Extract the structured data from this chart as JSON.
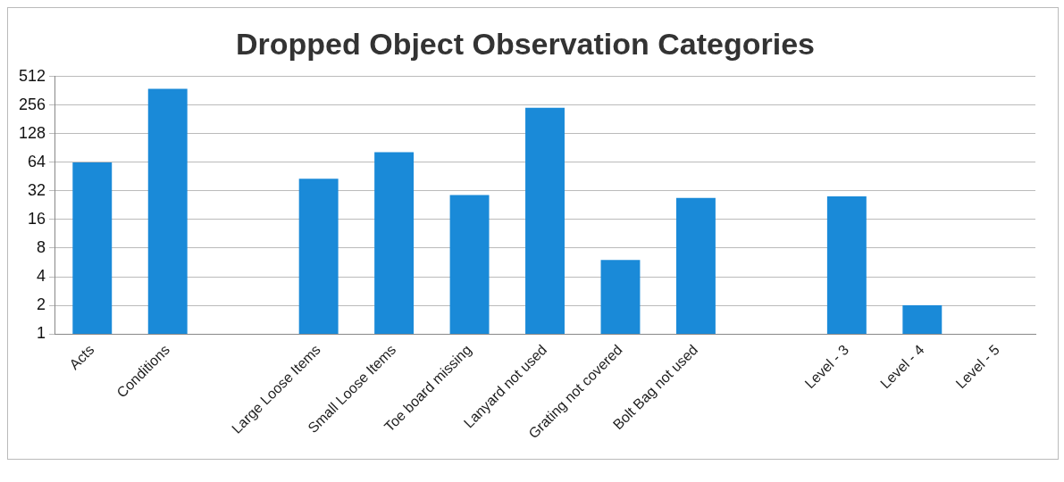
{
  "chart_data": {
    "type": "bar",
    "title": "Dropped Object Observation Categories",
    "categories": [
      "Acts",
      "Conditions",
      null,
      "Large Loose Items",
      "Small Loose Items",
      "Toe board missing",
      "Lanyard not used",
      "Grating not covered",
      "Bolt Bag not used",
      null,
      "Level - 3",
      "Level - 4",
      "Level - 5"
    ],
    "values": [
      64,
      380,
      null,
      43,
      82,
      29,
      240,
      6,
      27,
      null,
      28,
      2,
      null
    ],
    "color": "#1a8ad8",
    "log": true,
    "ylim": [
      1,
      512
    ],
    "yticks": [
      1,
      2,
      4,
      8,
      16,
      32,
      64,
      128,
      256,
      512
    ],
    "grid": "y",
    "legend": false
  }
}
